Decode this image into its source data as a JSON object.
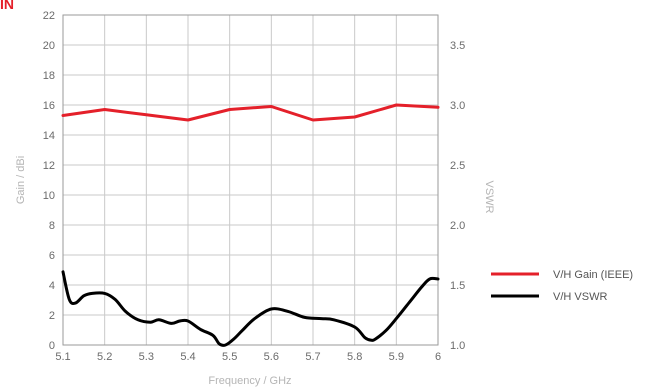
{
  "header": {
    "fragment": "IN"
  },
  "chart_data": {
    "type": "line",
    "xlabel": "Frequency / GHz",
    "ylabel_left": "Gain / dBi",
    "ylabel_right": "VSWR",
    "x_ticks": [
      "5.1",
      "5.2",
      "5.3",
      "5.4",
      "5.5",
      "5.6",
      "5.7",
      "5.8",
      "5.9",
      "6"
    ],
    "y_left_ticks": [
      "0",
      "2",
      "4",
      "6",
      "8",
      "10",
      "12",
      "14",
      "16",
      "18",
      "20",
      "22"
    ],
    "y_right_ticks": [
      "1.0",
      "1.5",
      "2.0",
      "2.5",
      "3.0",
      "3.5"
    ],
    "xlim": [
      5.1,
      6.0
    ],
    "ylim_left": [
      0,
      22
    ],
    "ylim_right": [
      1.0,
      3.75
    ],
    "grid": true,
    "legend_placement": "right",
    "series": [
      {
        "name": "V/H Gain (IEEE)",
        "axis": "left",
        "color": "#e4202a",
        "x": [
          5.1,
          5.2,
          5.3,
          5.4,
          5.5,
          5.6,
          5.7,
          5.8,
          5.9,
          6.0
        ],
        "y": [
          15.3,
          15.7,
          15.35,
          15.0,
          15.7,
          15.9,
          15.0,
          15.2,
          16.0,
          15.85
        ]
      },
      {
        "name": "V/H VSWR",
        "axis": "right",
        "color": "#000000",
        "x": [
          5.1,
          5.115,
          5.13,
          5.15,
          5.17,
          5.2,
          5.225,
          5.25,
          5.28,
          5.31,
          5.33,
          5.36,
          5.38,
          5.4,
          5.43,
          5.46,
          5.475,
          5.49,
          5.51,
          5.53,
          5.56,
          5.6,
          5.64,
          5.68,
          5.72,
          5.75,
          5.8,
          5.825,
          5.84,
          5.85,
          5.875,
          5.9,
          5.93,
          5.96,
          5.98,
          6.0
        ],
        "y": [
          1.61,
          1.38,
          1.35,
          1.41,
          1.43,
          1.43,
          1.38,
          1.28,
          1.21,
          1.19,
          1.21,
          1.18,
          1.2,
          1.2,
          1.13,
          1.08,
          1.01,
          1.0,
          1.05,
          1.12,
          1.22,
          1.3,
          1.28,
          1.23,
          1.22,
          1.21,
          1.15,
          1.06,
          1.04,
          1.05,
          1.12,
          1.22,
          1.35,
          1.48,
          1.55,
          1.55
        ]
      }
    ]
  }
}
